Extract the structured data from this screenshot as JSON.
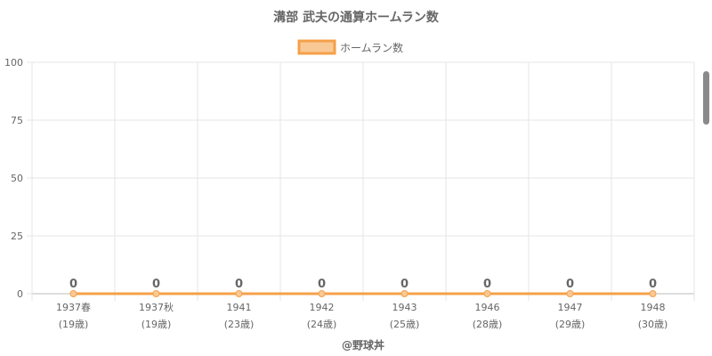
{
  "chart_data": {
    "type": "line",
    "title": "溝部 武夫の通算ホームラン数",
    "categories": [
      [
        "1937春",
        "(19歳)"
      ],
      [
        "1937秋",
        "(19歳)"
      ],
      [
        "1941",
        "(23歳)"
      ],
      [
        "1942",
        "(24歳)"
      ],
      [
        "1943",
        "(25歳)"
      ],
      [
        "1946",
        "(28歳)"
      ],
      [
        "1947",
        "(29歳)"
      ],
      [
        "1948",
        "(30歳)"
      ]
    ],
    "series": [
      {
        "name": "ホームラン数",
        "values": [
          0,
          0,
          0,
          0,
          0,
          0,
          0,
          0
        ]
      }
    ],
    "ylim": [
      0,
      100
    ],
    "yticks": [
      0,
      25,
      50,
      75,
      100
    ],
    "grid": true,
    "legend": "top",
    "data_labels": true,
    "credit": "@野球丼"
  },
  "colors": {
    "line": "#f5a04a",
    "legend_fill": "#f9c995",
    "grid": "#e6e6e6",
    "axis": "#bbbbbb",
    "text": "#666666",
    "title": "#666666"
  }
}
